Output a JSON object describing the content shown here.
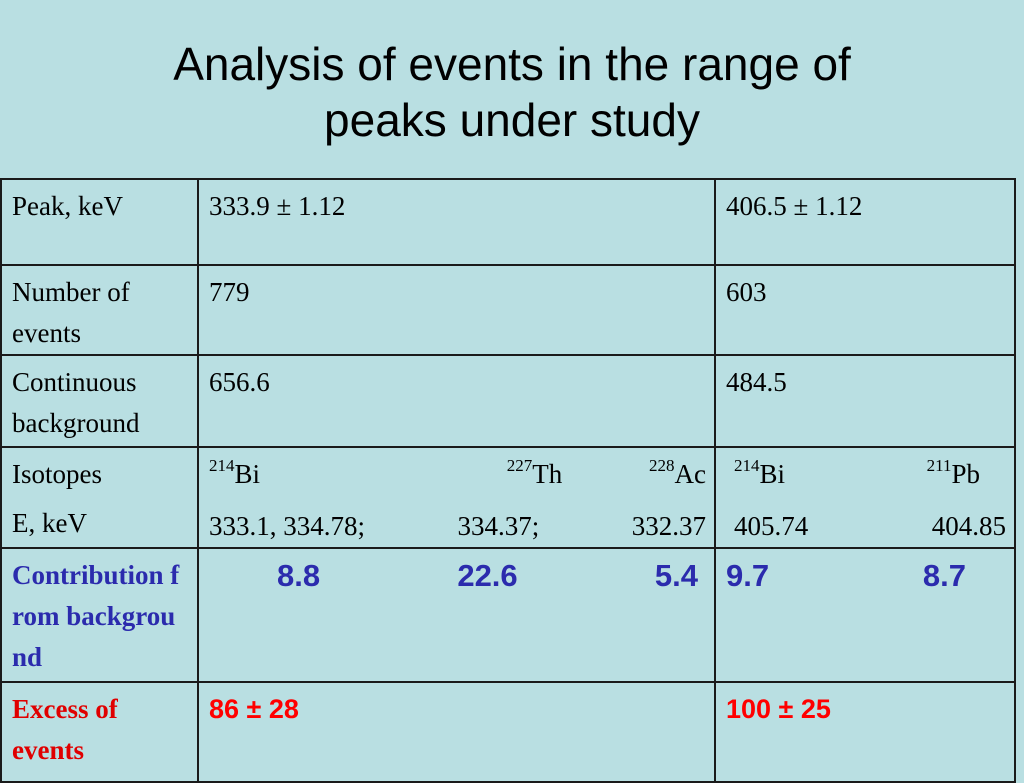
{
  "title": {
    "line1": "Analysis of events in the range of",
    "line2": "peaks under study"
  },
  "table": {
    "peak": {
      "label": "Peak, keV",
      "col1": "333.9 ± 1.12",
      "col2": "406.5 ± 1.12"
    },
    "num_events": {
      "label": "Number of events",
      "col1": "779",
      "col2": "603"
    },
    "continuous_bg": {
      "label": "Continuous background",
      "col1": "656.6",
      "col2": "484.5"
    },
    "isotopes": {
      "label": "Isotopes",
      "label2": "E, keV",
      "col1": [
        {
          "mass": "214",
          "element": "Bi",
          "energy": "333.1, 334.78;"
        },
        {
          "mass": "227",
          "element": "Th",
          "energy": "334.37;"
        },
        {
          "mass": "228",
          "element": "Ac",
          "energy": "332.37"
        }
      ],
      "col2": [
        {
          "mass": "214",
          "element": "Bi",
          "energy": "405.74"
        },
        {
          "mass": "211",
          "element": "Pb",
          "energy": "404.85"
        }
      ]
    },
    "contribution": {
      "label": "Contribution from background",
      "col1": [
        "8.8",
        "22.6",
        "5.4"
      ],
      "col2": [
        "9.7",
        "8.7"
      ]
    },
    "excess": {
      "label": "Excess of events",
      "col1": "86 ± 28",
      "col2": "100 ± 25"
    }
  },
  "colors": {
    "background": "#b9dfe2",
    "contribution_text": "#2b2bad",
    "excess_text": "#ff0000",
    "border": "#1a1a1a"
  }
}
